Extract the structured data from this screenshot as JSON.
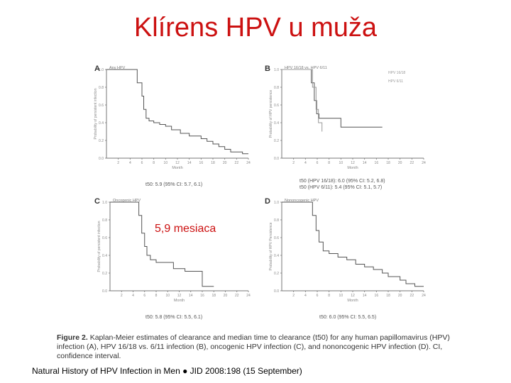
{
  "slide": {
    "title": "Klírens HPV u muža",
    "annotation": "5,9 mesiaca",
    "citation": "Natural History of HPV Infection in Men ● JID 2008:198 (15 September)"
  },
  "caption": {
    "label": "Figure 2.",
    "text": "Kaplan-Meier estimates of clearance and median time to clearance (t50) for any human papillomavirus (HPV) infection (A), HPV 16/18 vs. 6/11 infection (B), oncogenic HPV infection (C), and nononcogenic HPV infection (D). CI, confidence interval."
  },
  "chart_data": [
    {
      "type": "line",
      "panel_letter": "A",
      "title": "Any HPV",
      "xlabel": "Month",
      "ylabel": "Probability of persistent infection",
      "xlim": [
        0,
        24
      ],
      "ylim": [
        0,
        1
      ],
      "xticks": [
        "2",
        "4",
        "6",
        "8",
        "10",
        "12",
        "14",
        "16",
        "18",
        "20",
        "22",
        "24"
      ],
      "yticks": [
        "1.0",
        "0.8",
        "0.6",
        "0.4",
        "0.2",
        "0.0"
      ],
      "grid": false,
      "series": [
        {
          "name": "",
          "x": [
            0,
            4.5,
            5.2,
            6.0,
            6.3,
            6.7,
            7.2,
            8.0,
            9.0,
            10.0,
            11.0,
            12.5,
            14.0,
            16.0,
            17.0,
            18.0,
            19.0,
            20.0,
            21.0,
            23.0,
            24.0
          ],
          "y": [
            1.0,
            1.0,
            0.85,
            0.7,
            0.55,
            0.45,
            0.42,
            0.4,
            0.38,
            0.36,
            0.32,
            0.28,
            0.25,
            0.22,
            0.19,
            0.16,
            0.13,
            0.1,
            0.07,
            0.05,
            0.05
          ]
        }
      ],
      "median_label": "t50: 5.9 (95% CI: 5.7, 6.1)"
    },
    {
      "type": "line",
      "panel_letter": "B",
      "title": "HPV 16/18 vs. HPV 6/11",
      "xlabel": "Month",
      "ylabel": "Probability of HPV persistence",
      "xlim": [
        0,
        24
      ],
      "ylim": [
        0,
        1
      ],
      "xticks": [
        "2",
        "4",
        "6",
        "8",
        "10",
        "12",
        "14",
        "16",
        "18",
        "20",
        "22",
        "24"
      ],
      "yticks": [
        "1.0",
        "0.8",
        "0.6",
        "0.4",
        "0.2",
        "0.0"
      ],
      "grid": false,
      "legend": [
        "HPV 16/18",
        "HPV 6/11"
      ],
      "legend_position": "top-right",
      "series": [
        {
          "name": "HPV 16/18",
          "x": [
            0,
            4.7,
            5.0,
            5.5,
            5.9,
            6.3,
            9.5,
            10.0,
            17.0
          ],
          "y": [
            1.0,
            1.0,
            0.85,
            0.65,
            0.5,
            0.45,
            0.45,
            0.35,
            0.35
          ]
        },
        {
          "name": "HPV 6/11",
          "x": [
            0,
            4.8,
            5.2,
            5.8,
            6.2,
            6.8
          ],
          "y": [
            1.0,
            1.0,
            0.8,
            0.55,
            0.4,
            0.3
          ]
        }
      ],
      "median_label": "t50 (HPV 16/18): 6.0 (95% CI: 5.2, 6.8)\nt50 (HPV 6/11): 5.4 (95% CI: 5.1, 5.7)"
    },
    {
      "type": "line",
      "panel_letter": "C",
      "title": "Oncogenic HPV",
      "xlabel": "Month",
      "ylabel": "Probability of persistent infection",
      "xlim": [
        0,
        24
      ],
      "ylim": [
        0,
        1
      ],
      "xticks": [
        "2",
        "4",
        "6",
        "8",
        "10",
        "12",
        "14",
        "16",
        "18",
        "20",
        "22",
        "24"
      ],
      "yticks": [
        "1.0",
        "0.8",
        "0.6",
        "0.4",
        "0.2",
        "0.0"
      ],
      "grid": false,
      "series": [
        {
          "name": "",
          "x": [
            0,
            4.5,
            5.0,
            5.5,
            6.0,
            6.4,
            7.0,
            8.0,
            10.0,
            11.0,
            13.0,
            15.5,
            16.0,
            18.0
          ],
          "y": [
            1.0,
            1.0,
            0.85,
            0.65,
            0.5,
            0.4,
            0.35,
            0.32,
            0.32,
            0.25,
            0.22,
            0.22,
            0.05,
            0.05
          ]
        }
      ],
      "median_label": "t50: 5.8 (95% CI: 5.5, 6.1)"
    },
    {
      "type": "line",
      "panel_letter": "D",
      "title": "Nononcogenic HPV",
      "xlabel": "Month",
      "ylabel": "Probability of HPV Persistence",
      "xlim": [
        0,
        24
      ],
      "ylim": [
        0,
        1
      ],
      "xticks": [
        "2",
        "4",
        "6",
        "8",
        "10",
        "12",
        "14",
        "16",
        "18",
        "20",
        "22",
        "24"
      ],
      "yticks": [
        "1.0",
        "0.8",
        "0.6",
        "0.4",
        "0.2",
        "0.0"
      ],
      "grid": false,
      "series": [
        {
          "name": "",
          "x": [
            0,
            4.6,
            5.2,
            5.8,
            6.3,
            7.0,
            8.0,
            9.5,
            11.0,
            12.5,
            14.0,
            15.5,
            17.0,
            18.0,
            20.0,
            21.0,
            22.5,
            24.0
          ],
          "y": [
            1.0,
            1.0,
            0.85,
            0.68,
            0.55,
            0.45,
            0.42,
            0.38,
            0.35,
            0.3,
            0.27,
            0.24,
            0.2,
            0.16,
            0.12,
            0.08,
            0.05,
            0.05
          ]
        }
      ],
      "median_label": "t50: 6.0 (95% CI: 5.5, 6.5)"
    }
  ]
}
